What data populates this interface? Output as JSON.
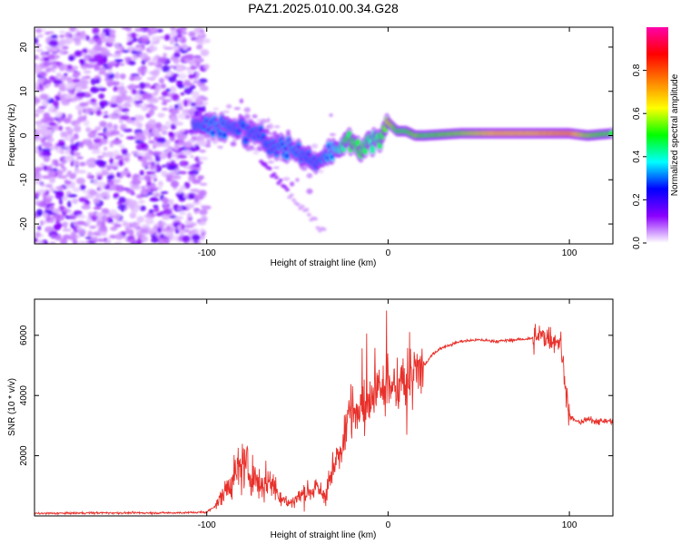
{
  "figure_title": "PAZ1.2025.010.00.34.G28",
  "chart_data": [
    {
      "type": "heatmap",
      "panel": "spectrogram",
      "xlabel": "Height of straight line (km)",
      "ylabel": "Frequency (Hz)",
      "xlim": [
        -195,
        124
      ],
      "ylim": [
        -24.5,
        24.5
      ],
      "xticks": [
        -100,
        0,
        100
      ],
      "xtick_labels": [
        "-100",
        "0",
        "100"
      ],
      "yticks": [
        -20,
        -10,
        0,
        10,
        20
      ],
      "ytick_labels": [
        "-20",
        "-10",
        "0",
        "10",
        "20"
      ],
      "ridge": {
        "x": [
          -105,
          -95,
          -85,
          -75,
          -65,
          -55,
          -45,
          -38,
          -30,
          -22,
          -15,
          -8,
          -3,
          0,
          5,
          10,
          15,
          20,
          40,
          60,
          80,
          100,
          110,
          124
        ],
        "freq": [
          3,
          2.5,
          1.5,
          0.5,
          -2,
          -3,
          -5,
          -6,
          -3,
          -1,
          -3,
          -1,
          0,
          3,
          1,
          1,
          0,
          0,
          0.5,
          0.5,
          0.5,
          0.5,
          0,
          0.5
        ],
        "amplitude": [
          0.2,
          0.25,
          0.2,
          0.2,
          0.2,
          0.25,
          0.2,
          0.2,
          0.3,
          0.5,
          0.5,
          0.4,
          0.5,
          0.7,
          0.5,
          0.5,
          0.6,
          0.5,
          0.6,
          0.8,
          0.8,
          0.9,
          0.6,
          0.5
        ]
      },
      "colorbar": {
        "label": "Normalized spectral amplitude",
        "range": [
          0,
          1
        ],
        "ticks": [
          0.0,
          0.2,
          0.4,
          0.6,
          0.8
        ],
        "tick_labels": [
          "0.0",
          "0.2",
          "0.4",
          "0.6",
          "0.8"
        ],
        "colors": [
          "#ffffff",
          "#8b00ff",
          "#0000ff",
          "#00ffff",
          "#00ff00",
          "#ffff00",
          "#ff8000",
          "#ff0000",
          "#ff00aa"
        ]
      }
    },
    {
      "type": "line",
      "panel": "snr",
      "xlabel": "Height of straight line (km)",
      "ylabel": "SNR (10 * v/v)",
      "xlim": [
        -195,
        124
      ],
      "ylim": [
        0,
        7200
      ],
      "xticks": [
        -100,
        0,
        100
      ],
      "xtick_labels": [
        "-100",
        "0",
        "100"
      ],
      "yticks": [
        2000,
        4000,
        6000
      ],
      "ytick_labels": [
        "2000",
        "4000",
        "6000"
      ],
      "line_color": "#e8302a",
      "series": [
        {
          "name": "SNR",
          "x": [
            -195,
            -160,
            -120,
            -100,
            -95,
            -90,
            -85,
            -80,
            -75,
            -70,
            -65,
            -60,
            -55,
            -50,
            -45,
            -40,
            -35,
            -30,
            -25,
            -22,
            -20,
            -15,
            -10,
            -5,
            0,
            5,
            10,
            15,
            20,
            25,
            30,
            40,
            50,
            60,
            70,
            80,
            85,
            90,
            95,
            98,
            100,
            105,
            110,
            115,
            124
          ],
          "y": [
            80,
            100,
            100,
            120,
            350,
            800,
            1300,
            1700,
            1400,
            1000,
            1200,
            700,
            400,
            600,
            800,
            900,
            700,
            1500,
            2500,
            3500,
            3800,
            3500,
            3900,
            4200,
            4400,
            4100,
            4500,
            4700,
            5000,
            5400,
            5600,
            5800,
            5850,
            5800,
            5850,
            5900,
            6000,
            5900,
            5800,
            4300,
            3300,
            3100,
            3200,
            3150,
            3150
          ]
        }
      ]
    }
  ]
}
